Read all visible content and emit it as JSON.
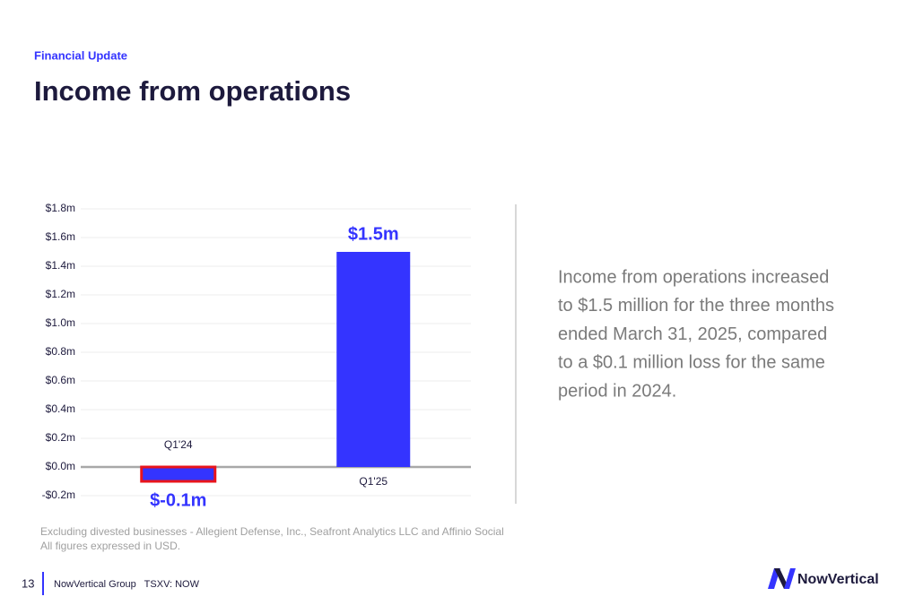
{
  "header": {
    "kicker": "Financial Update",
    "title": "Income from operations"
  },
  "chart_data": {
    "type": "bar",
    "categories": [
      "Q1'24",
      "Q1'25"
    ],
    "values": [
      -0.1,
      1.5
    ],
    "value_labels": [
      "$-0.1m",
      "$1.5m"
    ],
    "color": "#3434ff",
    "highlight": {
      "index": 0,
      "color": "#e8141c"
    },
    "ylim": [
      -0.2,
      1.8
    ],
    "yticks": [
      {
        "value": -0.2,
        "label": "-$0.2m"
      },
      {
        "value": 0,
        "label": "$0.0m"
      },
      {
        "value": 0.2,
        "label": "$0.2m"
      },
      {
        "value": 0.4,
        "label": "$0.4m"
      },
      {
        "value": 0.6,
        "label": "$0.6m"
      },
      {
        "value": 0.8,
        "label": "$0.8m"
      },
      {
        "value": 1.0,
        "label": "$1.0m"
      },
      {
        "value": 1.2,
        "label": "$1.2m"
      },
      {
        "value": 1.4,
        "label": "$1.4m"
      },
      {
        "value": 1.6,
        "label": "$1.6m"
      },
      {
        "value": 1.8,
        "label": "$1.8m"
      }
    ],
    "grid": true
  },
  "commentary": {
    "lines": [
      "Income from operations increased",
      "to $1.5 million for the three months",
      "ended March 31, 2025, compared",
      "to a $0.1 million loss for the same",
      "period in 2024."
    ]
  },
  "footnotes": [
    "Excluding divested businesses - Allegient Defense, Inc., Seafront Analytics LLC and Affinio Social",
    "All figures expressed in USD."
  ],
  "footer": {
    "page": "13",
    "company": "NowVertical Group   TSXV: NOW",
    "logo": "NowVertical"
  }
}
